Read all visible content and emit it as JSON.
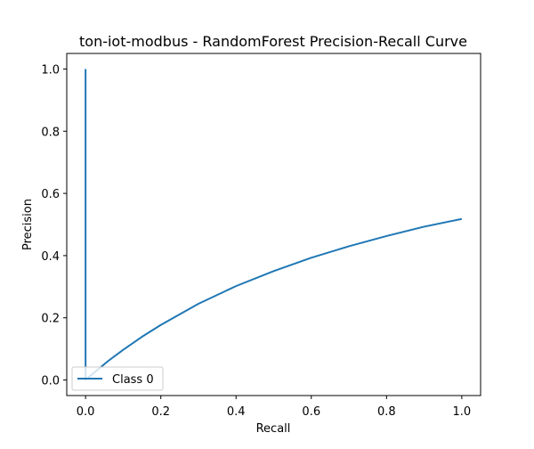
{
  "chart_data": {
    "type": "line",
    "title": "ton-iot-modbus - RandomForest Precision-Recall Curve",
    "xlabel": "Recall",
    "ylabel": "Precision",
    "xlim": [
      -0.05,
      1.05
    ],
    "ylim": [
      -0.05,
      1.05
    ],
    "xticks": [
      0.0,
      0.2,
      0.4,
      0.6,
      0.8,
      1.0
    ],
    "yticks": [
      0.0,
      0.2,
      0.4,
      0.6,
      0.8,
      1.0
    ],
    "grid": false,
    "legend_position": "lower-left",
    "series": [
      {
        "name": "Class 0",
        "color": "#1f77b4",
        "x": [
          0.0,
          0.0,
          0.0,
          0.02,
          0.04,
          0.06,
          0.1,
          0.15,
          0.2,
          0.3,
          0.4,
          0.5,
          0.6,
          0.7,
          0.8,
          0.9,
          1.0
        ],
        "y": [
          1.0,
          0.0,
          0.0,
          0.021,
          0.041,
          0.061,
          0.097,
          0.139,
          0.177,
          0.245,
          0.302,
          0.35,
          0.393,
          0.43,
          0.463,
          0.493,
          0.518
        ]
      }
    ]
  }
}
